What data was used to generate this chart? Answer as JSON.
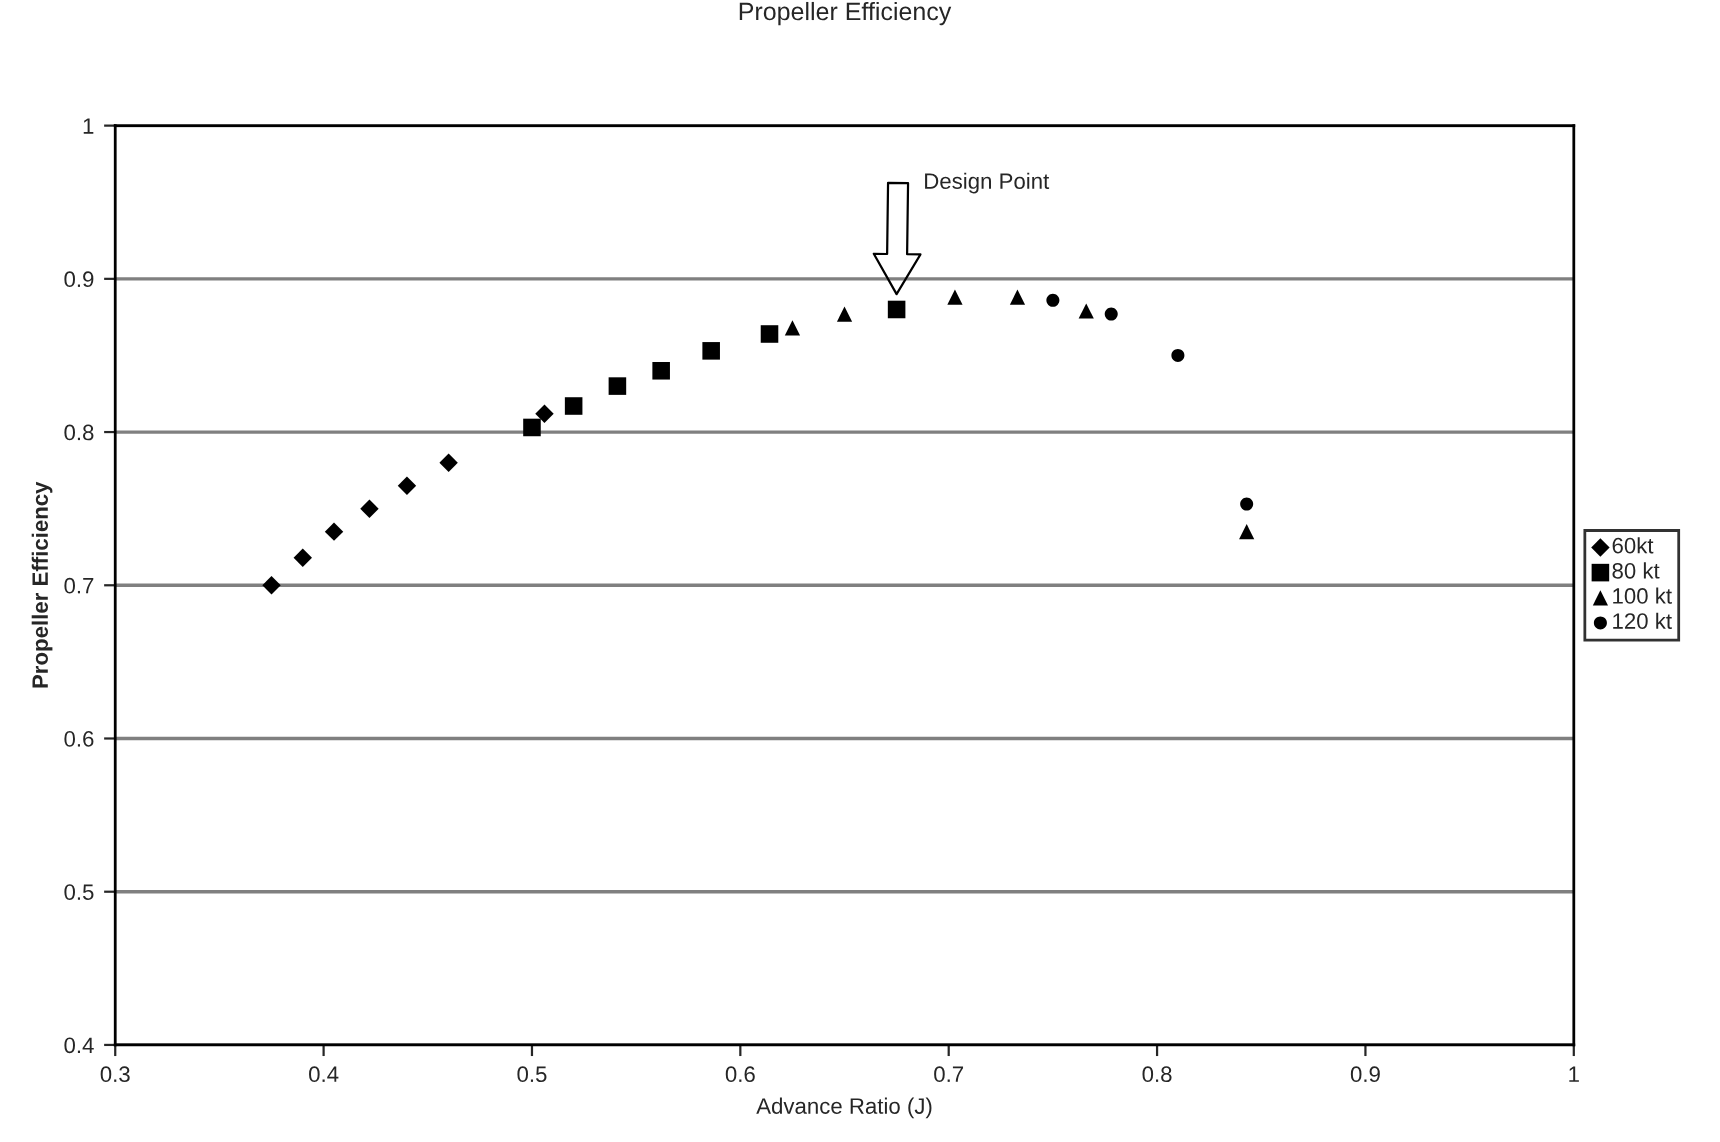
{
  "chart_data": {
    "type": "scatter",
    "title": "Propeller Efficiency",
    "xlabel": "Advance Ratio (J)",
    "ylabel": "Propeller Efficiency",
    "xlim": [
      0.3,
      1
    ],
    "ylim": [
      0.4,
      1
    ],
    "xticks": [
      0.3,
      0.4,
      0.5,
      0.6,
      0.7,
      0.8,
      0.9,
      1
    ],
    "yticks": [
      0.4,
      0.5,
      0.6,
      0.7,
      0.8,
      0.9,
      1
    ],
    "grid": "y",
    "legend": "right",
    "annotations": [
      "Design Point"
    ],
    "series": [
      {
        "name": "60kt",
        "color": "#000000",
        "marker": "diamond",
        "x": [
          0.375,
          0.39,
          0.405,
          0.422,
          0.44,
          0.46,
          0.506
        ],
        "values": [
          0.7,
          0.718,
          0.735,
          0.75,
          0.765,
          0.78,
          0.812
        ]
      },
      {
        "name": "80 kt",
        "color": "#000000",
        "marker": "square",
        "x": [
          0.5,
          0.52,
          0.541,
          0.562,
          0.586,
          0.614,
          0.675
        ],
        "values": [
          0.803,
          0.817,
          0.83,
          0.84,
          0.853,
          0.864,
          0.88
        ]
      },
      {
        "name": "100 kt",
        "color": "#000000",
        "marker": "triangle",
        "x": [
          0.625,
          0.65,
          0.703,
          0.733,
          0.766,
          0.843
        ],
        "values": [
          0.868,
          0.877,
          0.888,
          0.888,
          0.879,
          0.735
        ]
      },
      {
        "name": "120 kt",
        "color": "#000000",
        "marker": "circle",
        "x": [
          0.75,
          0.778,
          0.81,
          0.843
        ],
        "values": [
          0.886,
          0.877,
          0.85,
          0.753
        ]
      }
    ]
  }
}
